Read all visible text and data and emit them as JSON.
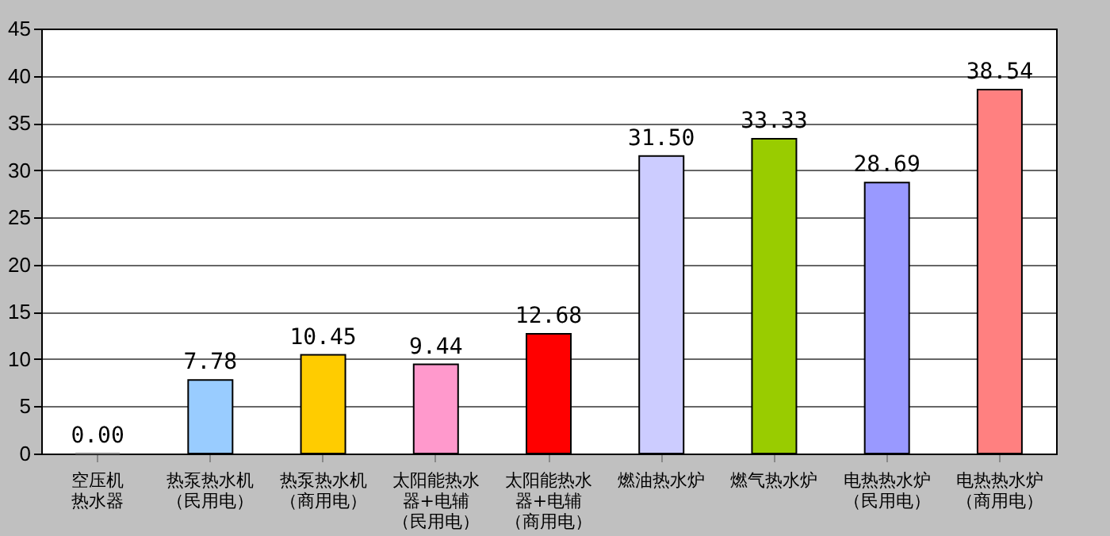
{
  "chart_data": {
    "type": "bar",
    "categories": [
      "空压机热水器",
      "热泵热水机（民用电）",
      "热泵热水机（商用电）",
      "太阳能热水器+电辅（民用电）",
      "太阳能热水器+电辅（商用电）",
      "燃油热水炉",
      "燃气热水炉",
      "电热热水炉（民用电）",
      "电热热水炉（商用电）"
    ],
    "values": [
      0,
      7.78,
      10.45,
      9.44,
      12.68,
      31.5,
      33.33,
      28.69,
      38.54
    ],
    "value_labels": [
      "0.00",
      "7.78",
      "10.45",
      "9.44",
      "12.68",
      "31.50",
      "33.33",
      "28.69",
      "38.54"
    ],
    "colors": [
      "#808080",
      "#99ccff",
      "#ffcc00",
      "#ff99cc",
      "#ff0000",
      "#ccccff",
      "#99cc00",
      "#9999ff",
      "#ff8080"
    ],
    "ylim": [
      0,
      45
    ],
    "yticks": [
      0,
      5,
      10,
      15,
      20,
      25,
      30,
      35,
      40,
      45
    ],
    "grid": "y"
  }
}
